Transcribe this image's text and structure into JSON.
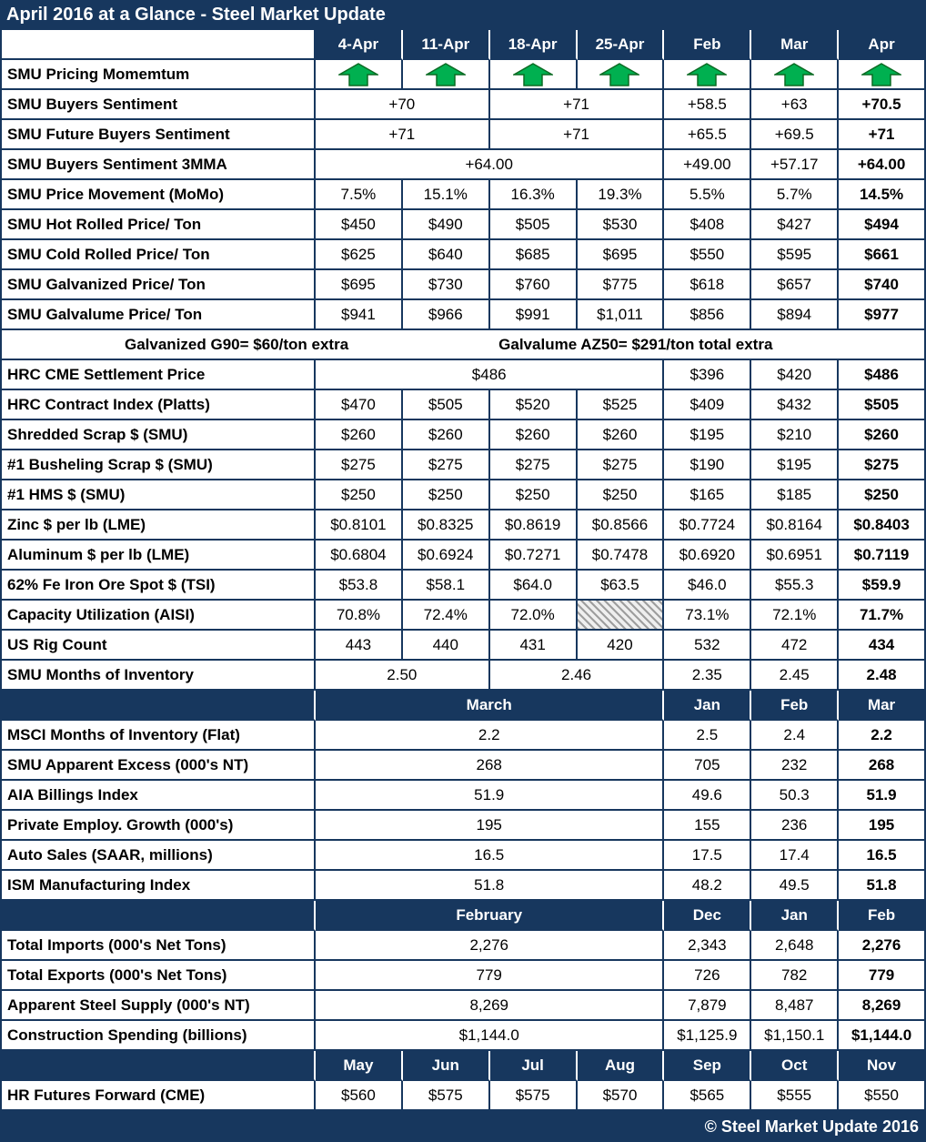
{
  "footer_text": "© Steel Market Update 2016",
  "colors": {
    "navy": "#17375E",
    "arrow_green": "#00B050",
    "arrow_green_outline": "#0B6B23",
    "hatch_gray": "#9E9E9E"
  },
  "icons": {
    "momentum": "up-arrow-icon"
  },
  "chart_data": {
    "type": "table",
    "title": "April 2016 at a Glance - Steel Market Update",
    "columns": [
      "",
      "4-Apr",
      "11-Apr",
      "18-Apr",
      "25-Apr",
      "Feb",
      "Mar",
      "Apr"
    ],
    "rows": [
      {
        "type": "data",
        "label": "SMU Pricing Momemtum",
        "cells": [
          {
            "icon": "up-arrow"
          },
          {
            "icon": "up-arrow"
          },
          {
            "icon": "up-arrow"
          },
          {
            "icon": "up-arrow"
          },
          {
            "icon": "up-arrow"
          },
          {
            "icon": "up-arrow"
          },
          {
            "icon": "up-arrow"
          }
        ]
      },
      {
        "type": "data",
        "label": "SMU Buyers Sentiment",
        "cells": [
          {
            "text": "+70",
            "span": 2
          },
          {
            "text": "+71",
            "span": 2
          },
          {
            "text": "+58.5"
          },
          {
            "text": "+63"
          },
          {
            "text": "+70.5",
            "bold": true
          }
        ]
      },
      {
        "type": "data",
        "label": "SMU Future Buyers Sentiment",
        "cells": [
          {
            "text": "+71",
            "span": 2
          },
          {
            "text": "+71",
            "span": 2
          },
          {
            "text": "+65.5"
          },
          {
            "text": "+69.5"
          },
          {
            "text": "+71",
            "bold": true
          }
        ]
      },
      {
        "type": "data",
        "label": "SMU Buyers Sentiment 3MMA",
        "cells": [
          {
            "text": "+64.00",
            "span": 4
          },
          {
            "text": "+49.00"
          },
          {
            "text": "+57.17"
          },
          {
            "text": "+64.00",
            "bold": true
          }
        ]
      },
      {
        "type": "data",
        "label": "SMU Price Movement (MoMo)",
        "cells": [
          {
            "text": "7.5%"
          },
          {
            "text": "15.1%"
          },
          {
            "text": "16.3%"
          },
          {
            "text": "19.3%"
          },
          {
            "text": "5.5%"
          },
          {
            "text": "5.7%"
          },
          {
            "text": "14.5%",
            "bold": true
          }
        ]
      },
      {
        "type": "data",
        "label": "SMU Hot Rolled Price/ Ton",
        "cells": [
          {
            "text": "$450"
          },
          {
            "text": "$490"
          },
          {
            "text": "$505"
          },
          {
            "text": "$530"
          },
          {
            "text": "$408"
          },
          {
            "text": "$427"
          },
          {
            "text": "$494",
            "bold": true
          }
        ]
      },
      {
        "type": "data",
        "label": "SMU Cold Rolled Price/ Ton",
        "cells": [
          {
            "text": "$625"
          },
          {
            "text": "$640"
          },
          {
            "text": "$685"
          },
          {
            "text": "$695"
          },
          {
            "text": "$550"
          },
          {
            "text": "$595"
          },
          {
            "text": "$661",
            "bold": true
          }
        ]
      },
      {
        "type": "data",
        "label": "SMU Galvanized Price/ Ton",
        "cells": [
          {
            "text": "$695"
          },
          {
            "text": "$730"
          },
          {
            "text": "$760"
          },
          {
            "text": "$775"
          },
          {
            "text": "$618"
          },
          {
            "text": "$657"
          },
          {
            "text": "$740",
            "bold": true
          }
        ]
      },
      {
        "type": "data",
        "label": "SMU Galvalume Price/ Ton",
        "cells": [
          {
            "text": "$941"
          },
          {
            "text": "$966"
          },
          {
            "text": "$991"
          },
          {
            "text": "$1,011"
          },
          {
            "text": "$856"
          },
          {
            "text": "$894"
          },
          {
            "text": "$977",
            "bold": true
          }
        ]
      },
      {
        "type": "note",
        "segments": [
          "Galvanized G90= $60/ton extra",
          "Galvalume AZ50= $291/ton total extra"
        ]
      },
      {
        "type": "data",
        "label": "HRC CME Settlement Price",
        "cells": [
          {
            "text": "$486",
            "span": 4
          },
          {
            "text": "$396"
          },
          {
            "text": "$420"
          },
          {
            "text": "$486",
            "bold": true
          }
        ]
      },
      {
        "type": "data",
        "label": "HRC Contract Index (Platts)",
        "cells": [
          {
            "text": "$470"
          },
          {
            "text": "$505"
          },
          {
            "text": "$520"
          },
          {
            "text": "$525"
          },
          {
            "text": "$409"
          },
          {
            "text": "$432"
          },
          {
            "text": "$505",
            "bold": true
          }
        ]
      },
      {
        "type": "data",
        "label": "Shredded Scrap $ (SMU)",
        "cells": [
          {
            "text": "$260"
          },
          {
            "text": "$260"
          },
          {
            "text": "$260"
          },
          {
            "text": "$260"
          },
          {
            "text": "$195"
          },
          {
            "text": "$210"
          },
          {
            "text": "$260",
            "bold": true
          }
        ]
      },
      {
        "type": "data",
        "label": "#1 Busheling Scrap $ (SMU)",
        "cells": [
          {
            "text": "$275"
          },
          {
            "text": "$275"
          },
          {
            "text": "$275"
          },
          {
            "text": "$275"
          },
          {
            "text": "$190"
          },
          {
            "text": "$195"
          },
          {
            "text": "$275",
            "bold": true
          }
        ]
      },
      {
        "type": "data",
        "label": "#1 HMS $ (SMU)",
        "cells": [
          {
            "text": "$250"
          },
          {
            "text": "$250"
          },
          {
            "text": "$250"
          },
          {
            "text": "$250"
          },
          {
            "text": "$165"
          },
          {
            "text": "$185"
          },
          {
            "text": "$250",
            "bold": true
          }
        ]
      },
      {
        "type": "data",
        "label": "Zinc $ per lb (LME)",
        "cells": [
          {
            "text": "$0.8101"
          },
          {
            "text": "$0.8325"
          },
          {
            "text": "$0.8619"
          },
          {
            "text": "$0.8566"
          },
          {
            "text": "$0.7724"
          },
          {
            "text": "$0.8164"
          },
          {
            "text": "$0.8403",
            "bold": true
          }
        ]
      },
      {
        "type": "data",
        "label": "Aluminum $ per lb (LME)",
        "cells": [
          {
            "text": "$0.6804"
          },
          {
            "text": "$0.6924"
          },
          {
            "text": "$0.7271"
          },
          {
            "text": "$0.7478"
          },
          {
            "text": "$0.6920"
          },
          {
            "text": "$0.6951"
          },
          {
            "text": "$0.7119",
            "bold": true
          }
        ]
      },
      {
        "type": "data",
        "label": "62% Fe Iron Ore Spot $ (TSI)",
        "cells": [
          {
            "text": "$53.8"
          },
          {
            "text": "$58.1"
          },
          {
            "text": "$64.0"
          },
          {
            "text": "$63.5"
          },
          {
            "text": "$46.0"
          },
          {
            "text": "$55.3"
          },
          {
            "text": "$59.9",
            "bold": true
          }
        ]
      },
      {
        "type": "data",
        "label": "Capacity Utilization (AISI)",
        "cells": [
          {
            "text": "70.8%"
          },
          {
            "text": "72.4%"
          },
          {
            "text": "72.0%"
          },
          {
            "hatch": true
          },
          {
            "text": "73.1%"
          },
          {
            "text": "72.1%"
          },
          {
            "text": "71.7%",
            "bold": true
          }
        ]
      },
      {
        "type": "data",
        "label": "US Rig Count",
        "cells": [
          {
            "text": "443"
          },
          {
            "text": "440"
          },
          {
            "text": "431"
          },
          {
            "text": "420"
          },
          {
            "text": "532"
          },
          {
            "text": "472"
          },
          {
            "text": "434",
            "bold": true
          }
        ]
      },
      {
        "type": "data",
        "label": "SMU Months of Inventory",
        "cells": [
          {
            "text": "2.50",
            "span": 2
          },
          {
            "text": "2.46",
            "span": 2
          },
          {
            "text": "2.35"
          },
          {
            "text": "2.45"
          },
          {
            "text": "2.48",
            "bold": true
          }
        ]
      },
      {
        "type": "section",
        "label": "",
        "cells": [
          {
            "text": "March",
            "span": 4
          },
          {
            "text": "Jan"
          },
          {
            "text": "Feb"
          },
          {
            "text": "Mar"
          }
        ]
      },
      {
        "type": "data",
        "label": "MSCI Months of Inventory (Flat)",
        "cells": [
          {
            "text": "2.2",
            "span": 4
          },
          {
            "text": "2.5"
          },
          {
            "text": "2.4"
          },
          {
            "text": "2.2",
            "bold": true
          }
        ]
      },
      {
        "type": "data",
        "label": "SMU Apparent Excess (000's NT)",
        "cells": [
          {
            "text": "268",
            "span": 4
          },
          {
            "text": "705"
          },
          {
            "text": "232"
          },
          {
            "text": "268",
            "bold": true
          }
        ]
      },
      {
        "type": "data",
        "label": "AIA Billings Index",
        "cells": [
          {
            "text": "51.9",
            "span": 4
          },
          {
            "text": "49.6"
          },
          {
            "text": "50.3"
          },
          {
            "text": "51.9",
            "bold": true
          }
        ]
      },
      {
        "type": "data",
        "label": "Private Employ. Growth (000's)",
        "cells": [
          {
            "text": "195",
            "span": 4
          },
          {
            "text": "155"
          },
          {
            "text": "236"
          },
          {
            "text": "195",
            "bold": true
          }
        ]
      },
      {
        "type": "data",
        "label": "Auto Sales (SAAR, millions)",
        "cells": [
          {
            "text": "16.5",
            "span": 4
          },
          {
            "text": "17.5"
          },
          {
            "text": "17.4"
          },
          {
            "text": "16.5",
            "bold": true
          }
        ]
      },
      {
        "type": "data",
        "label": "ISM Manufacturing Index",
        "cells": [
          {
            "text": "51.8",
            "span": 4
          },
          {
            "text": "48.2"
          },
          {
            "text": "49.5"
          },
          {
            "text": "51.8",
            "bold": true
          }
        ]
      },
      {
        "type": "section",
        "label": "",
        "cells": [
          {
            "text": "February",
            "span": 4
          },
          {
            "text": "Dec"
          },
          {
            "text": "Jan"
          },
          {
            "text": "Feb"
          }
        ]
      },
      {
        "type": "data",
        "label": "Total Imports (000's Net Tons)",
        "cells": [
          {
            "text": "2,276",
            "span": 4
          },
          {
            "text": "2,343"
          },
          {
            "text": "2,648"
          },
          {
            "text": "2,276",
            "bold": true
          }
        ]
      },
      {
        "type": "data",
        "label": "Total Exports (000's Net Tons)",
        "cells": [
          {
            "text": "779",
            "span": 4
          },
          {
            "text": "726"
          },
          {
            "text": "782"
          },
          {
            "text": "779",
            "bold": true
          }
        ]
      },
      {
        "type": "data",
        "label": "Apparent Steel Supply (000's NT)",
        "cells": [
          {
            "text": "8,269",
            "span": 4
          },
          {
            "text": "7,879"
          },
          {
            "text": "8,487"
          },
          {
            "text": "8,269",
            "bold": true
          }
        ]
      },
      {
        "type": "data",
        "label": "Construction Spending (billions)",
        "cells": [
          {
            "text": "$1,144.0",
            "span": 4
          },
          {
            "text": "$1,125.9"
          },
          {
            "text": "$1,150.1"
          },
          {
            "text": "$1,144.0",
            "bold": true
          }
        ]
      },
      {
        "type": "section",
        "label": "",
        "cells": [
          {
            "text": "May"
          },
          {
            "text": "Jun"
          },
          {
            "text": "Jul"
          },
          {
            "text": "Aug"
          },
          {
            "text": "Sep"
          },
          {
            "text": "Oct"
          },
          {
            "text": "Nov"
          }
        ]
      },
      {
        "type": "data",
        "label": "HR Futures Forward (CME)",
        "cells": [
          {
            "text": "$560"
          },
          {
            "text": "$575"
          },
          {
            "text": "$575"
          },
          {
            "text": "$570"
          },
          {
            "text": "$565"
          },
          {
            "text": "$555"
          },
          {
            "text": "$550"
          }
        ]
      }
    ]
  }
}
